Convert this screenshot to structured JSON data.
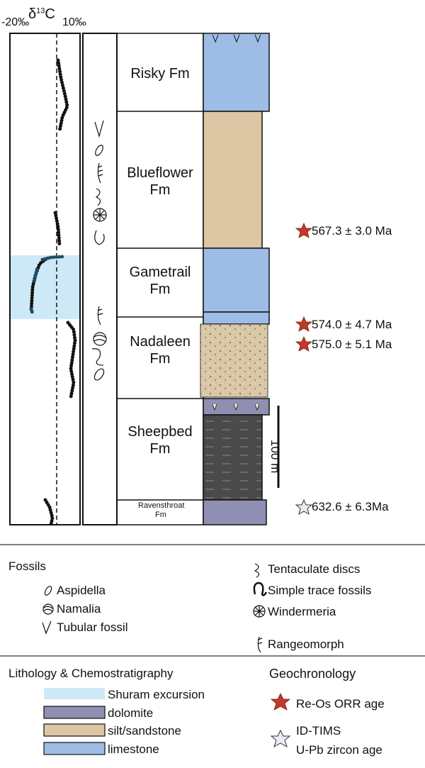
{
  "axis": {
    "left_label": "-20‰",
    "isotope": {
      "symbol": "δ",
      "mass": "13",
      "element": "C"
    },
    "right_label": "10‰"
  },
  "formations": [
    "Risky Fm",
    "Blueflower Fm",
    "Gametrail Fm",
    "Nadaleen Fm",
    "Sheepbed Fm",
    "Ravensthroat Fm"
  ],
  "ages": [
    "567.3 ± 3.0 Ma",
    "574.0 ± 4.7 Ma",
    "575.0 ± 5.1 Ma",
    "632.6 ± 6.3Ma"
  ],
  "scale_bar": "100 m",
  "legend": {
    "fossils": {
      "title": "Fossils",
      "items": [
        "Aspidella",
        "Namalia",
        "Tubular fossil",
        "Tentaculate discs",
        "Simple trace fossils",
        "Windermeria",
        "Rangeomorph"
      ]
    },
    "lithology": {
      "title": "Lithology & Chemostratigraphy",
      "items": [
        "Shuram excursion",
        "dolomite",
        "silt/sandstone",
        "limestone"
      ]
    },
    "geochronology": {
      "title": "Geochronology",
      "items": [
        "Re-Os ORR age",
        "ID-TIMS",
        "U-Pb zircon age"
      ]
    }
  }
}
